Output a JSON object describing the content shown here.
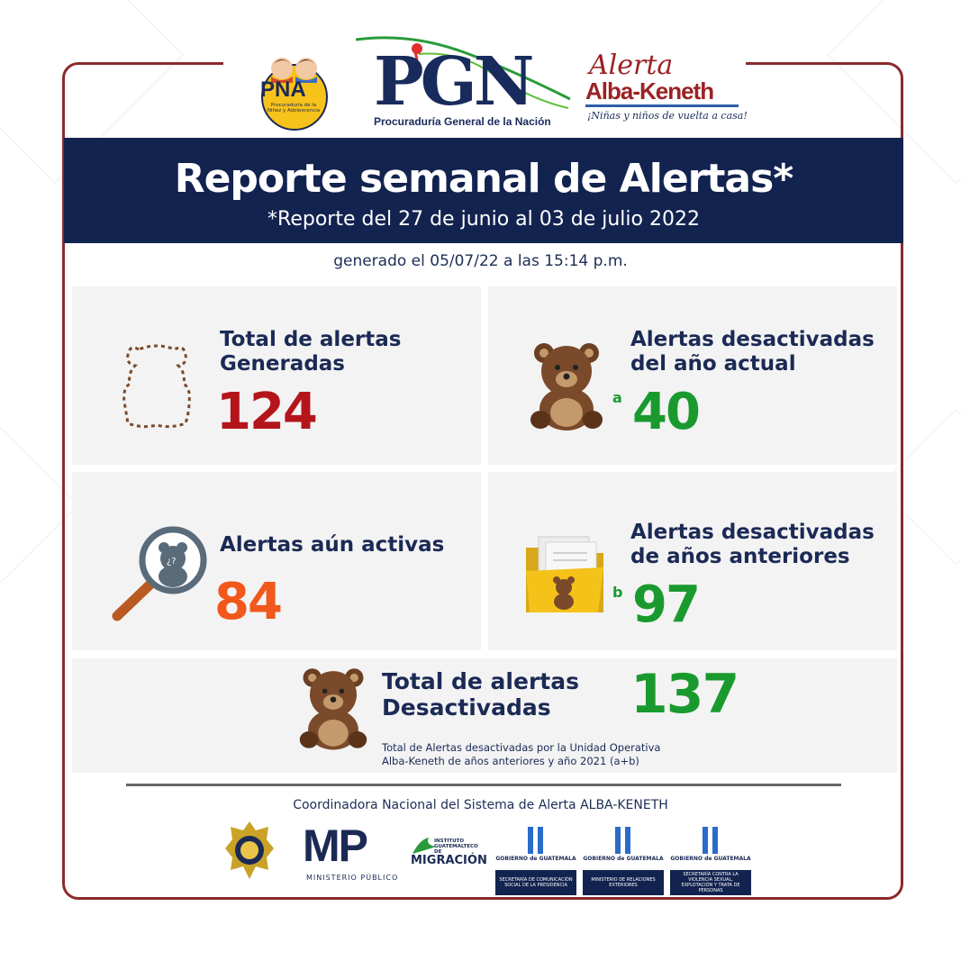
{
  "header": {
    "pna": {
      "big": "PNA",
      "small": "Procuraduría de la Niñez y Adolescencia"
    },
    "pgn": {
      "letters": "PGN",
      "sub": "Procuraduría General de la Nación"
    },
    "alerta": {
      "line1": "Alerta",
      "line2": "Alba-Keneth",
      "line3": "¡Niñas y niños de vuelta a casa!"
    }
  },
  "banner": {
    "title": "Reporte semanal de Alertas*",
    "subtitle": "*Reporte del 27 de junio al 03 de julio 2022"
  },
  "generated": "generado el 05/07/22 a las 15:14 p.m.",
  "cards": {
    "total_generadas": {
      "title1": "Total de alertas",
      "title2": "Generadas",
      "value": "124"
    },
    "desactivadas_actual": {
      "title1": "Alertas desactivadas",
      "title2": "del año actual",
      "note": "a",
      "value": "40"
    },
    "activas": {
      "title1": "Alertas aún activas",
      "value": "84"
    },
    "desactivadas_anteriores": {
      "title1": "Alertas desactivadas",
      "title2": "de años anteriores",
      "note": "b",
      "value": "97"
    },
    "total_desactivadas": {
      "title1": "Total de alertas",
      "title2": "Desactivadas",
      "value": "137",
      "note1": "Total de Alertas desactivadas por la Unidad Operativa",
      "note2": "Alba-Keneth de años anteriores y año 2021 (a+b)"
    }
  },
  "footer": {
    "title": "Coordinadora Nacional del Sistema de Alerta ALBA-KENETH",
    "mp": {
      "big": "MP",
      "sub": "MINISTERIO PÚBLICO"
    },
    "migracion": {
      "small": "INSTITUTO GUATEMALTECO DE",
      "big": "MIGRACIÓN"
    },
    "gob1": {
      "name": "GOBIERNO de GUATEMALA",
      "box": "SECRETARÍA DE COMUNICACIÓN SOCIAL DE LA PRESIDENCIA"
    },
    "gob2": {
      "name": "GOBIERNO de GUATEMALA",
      "box": "MINISTERIO DE RELACIONES EXTERIORES"
    },
    "gob3": {
      "name": "GOBIERNO de GUATEMALA",
      "box": "SECRETARÍA CONTRA LA VIOLENCIA SEXUAL, EXPLOTACIÓN Y TRATA DE PERSONAS"
    }
  },
  "colors": {
    "navy": "#132350",
    "frame": "#8b2a2c",
    "red": "#b4151b",
    "green": "#1a9a2e",
    "orange": "#f2571b",
    "card": "#f3f3f3",
    "bear": "#7a4a2a"
  },
  "icons": [
    "bear-outline-icon",
    "teddy-bear-icon",
    "magnifier-bear-icon",
    "folder-bear-icon",
    "police-badge-icon"
  ]
}
